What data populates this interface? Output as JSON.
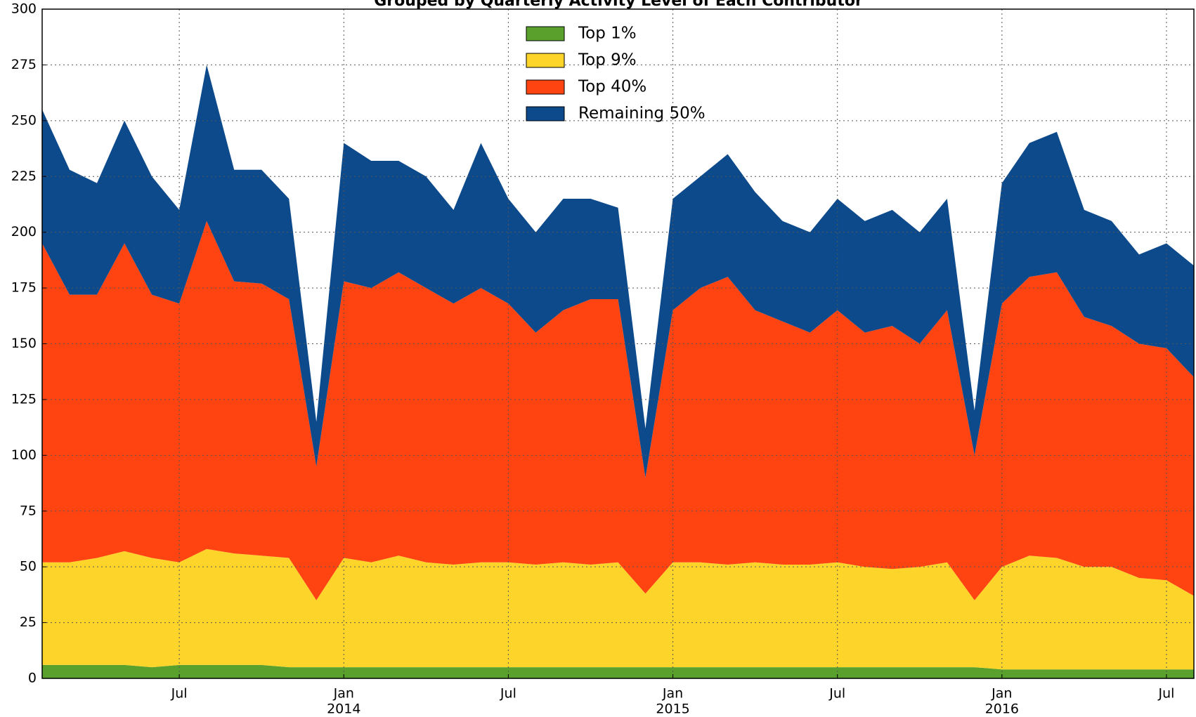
{
  "chart_data": {
    "type": "stacked_area",
    "title": "Grouped by Quarterly Activity Level of Each Contributor",
    "x": [
      "2013-02",
      "2013-03",
      "2013-04",
      "2013-05",
      "2013-06",
      "2013-07",
      "2013-08",
      "2013-09",
      "2013-10",
      "2013-11",
      "2013-12",
      "2014-01",
      "2014-02",
      "2014-03",
      "2014-04",
      "2014-05",
      "2014-06",
      "2014-07",
      "2014-08",
      "2014-09",
      "2014-10",
      "2014-11",
      "2014-12",
      "2015-01",
      "2015-02",
      "2015-03",
      "2015-04",
      "2015-05",
      "2015-06",
      "2015-07",
      "2015-08",
      "2015-09",
      "2015-10",
      "2015-11",
      "2015-12",
      "2016-01",
      "2016-02",
      "2016-03",
      "2016-04",
      "2016-05",
      "2016-06",
      "2016-07",
      "2016-08"
    ],
    "series": [
      {
        "name": "Top 1%",
        "color": "#5aa02c",
        "values": [
          6,
          6,
          6,
          6,
          5,
          6,
          6,
          6,
          6,
          5,
          5,
          5,
          5,
          5,
          5,
          5,
          5,
          5,
          5,
          5,
          5,
          5,
          5,
          5,
          5,
          5,
          5,
          5,
          5,
          5,
          5,
          5,
          5,
          5,
          5,
          4,
          4,
          4,
          4,
          4,
          4,
          4,
          4
        ]
      },
      {
        "name": "Top 9%",
        "color": "#fdd52a",
        "values": [
          46,
          46,
          48,
          51,
          49,
          46,
          52,
          50,
          49,
          49,
          30,
          49,
          47,
          50,
          47,
          46,
          47,
          47,
          46,
          47,
          46,
          47,
          33,
          47,
          47,
          46,
          47,
          46,
          46,
          47,
          45,
          44,
          45,
          47,
          30,
          46,
          51,
          50,
          46,
          46,
          41,
          40,
          33
        ]
      },
      {
        "name": "Top 40%",
        "color": "#ff4412",
        "values": [
          143,
          120,
          118,
          138,
          118,
          116,
          147,
          122,
          122,
          116,
          60,
          124,
          123,
          127,
          123,
          117,
          123,
          116,
          104,
          113,
          119,
          118,
          52,
          113,
          123,
          129,
          113,
          109,
          104,
          113,
          105,
          109,
          100,
          113,
          65,
          118,
          125,
          128,
          112,
          108,
          105,
          104,
          98
        ]
      },
      {
        "name": "Remaining 50%",
        "color": "#0d4a8b",
        "values": [
          60,
          56,
          50,
          55,
          53,
          42,
          70,
          50,
          51,
          45,
          20,
          62,
          57,
          50,
          50,
          42,
          65,
          47,
          45,
          50,
          45,
          41,
          22,
          50,
          50,
          55,
          53,
          45,
          45,
          50,
          50,
          52,
          50,
          50,
          20,
          54,
          60,
          63,
          48,
          47,
          40,
          47,
          50
        ]
      }
    ],
    "xlim": [
      "2013-02",
      "2016-08"
    ],
    "xticks": [
      {
        "value": "2013-07",
        "label": "Jul"
      },
      {
        "value": "2014-01",
        "label": "Jan"
      },
      {
        "value": "2014-07",
        "label": "Jul"
      },
      {
        "value": "2015-01",
        "label": "Jan"
      },
      {
        "value": "2015-07",
        "label": "Jul"
      },
      {
        "value": "2016-01",
        "label": "Jan"
      },
      {
        "value": "2016-07",
        "label": "Jul"
      }
    ],
    "xtick_years": [
      {
        "value": "2014-01",
        "label": "2014"
      },
      {
        "value": "2015-01",
        "label": "2015"
      },
      {
        "value": "2016-01",
        "label": "2016"
      }
    ],
    "ylim": [
      0,
      300
    ],
    "yticks": [
      0,
      25,
      50,
      75,
      100,
      125,
      150,
      175,
      200,
      225,
      250,
      275,
      300
    ],
    "grid": true,
    "legend": "upper center"
  }
}
